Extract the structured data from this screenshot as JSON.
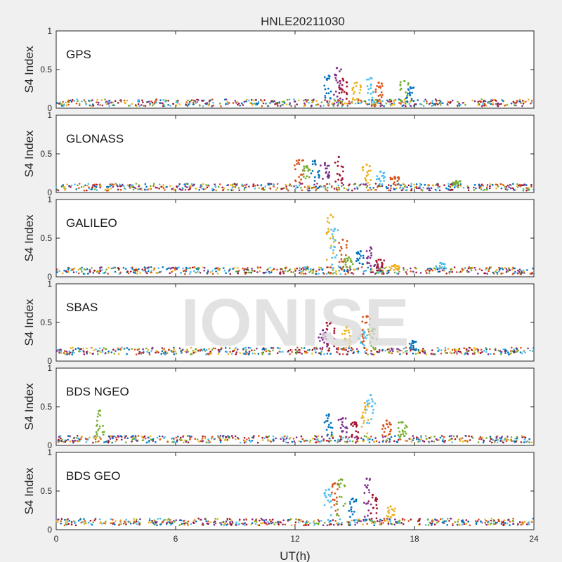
{
  "figure": {
    "title": "HNLE20211030",
    "watermark": "IONISE"
  },
  "colors": {
    "background": "#f0f0f0",
    "axes": "#262626",
    "series": [
      "#0072bd",
      "#d95319",
      "#edb120",
      "#7e2f8e",
      "#77ac30",
      "#4dbeee",
      "#a2142f"
    ]
  },
  "chart_data": [
    {
      "type": "scatter",
      "panel": "GPS",
      "xlabel": "",
      "ylabel": "S4 Index",
      "xlim": [
        0,
        24
      ],
      "ylim": [
        0,
        1
      ],
      "xticks": [
        0,
        6,
        12,
        18,
        24
      ],
      "yticks": [
        0,
        0.5,
        1
      ],
      "xtick_labels_shown": false,
      "grid": false,
      "background_level": 0.07,
      "events": [
        {
          "x": 13.7,
          "y": 0.42
        },
        {
          "x": 14.1,
          "y": 0.52
        },
        {
          "x": 14.4,
          "y": 0.38
        },
        {
          "x": 15.1,
          "y": 0.33
        },
        {
          "x": 15.8,
          "y": 0.39
        },
        {
          "x": 16.2,
          "y": 0.33
        },
        {
          "x": 17.5,
          "y": 0.35
        },
        {
          "x": 17.8,
          "y": 0.27
        }
      ]
    },
    {
      "type": "scatter",
      "panel": "GLONASS",
      "xlabel": "",
      "ylabel": "S4 Index",
      "xlim": [
        0,
        24
      ],
      "ylim": [
        0,
        1
      ],
      "xticks": [
        0,
        6,
        12,
        18,
        24
      ],
      "yticks": [
        0,
        0.5,
        1
      ],
      "xtick_labels_shown": false,
      "grid": false,
      "background_level": 0.07,
      "events": [
        {
          "x": 12.2,
          "y": 0.42
        },
        {
          "x": 12.6,
          "y": 0.34
        },
        {
          "x": 13.0,
          "y": 0.41
        },
        {
          "x": 13.5,
          "y": 0.38
        },
        {
          "x": 14.2,
          "y": 0.46
        },
        {
          "x": 15.6,
          "y": 0.36
        },
        {
          "x": 16.3,
          "y": 0.27
        },
        {
          "x": 17.0,
          "y": 0.2
        },
        {
          "x": 20.1,
          "y": 0.15
        }
      ]
    },
    {
      "type": "scatter",
      "panel": "GALILEO",
      "xlabel": "",
      "ylabel": "S4 Index",
      "xlim": [
        0,
        24
      ],
      "ylim": [
        0,
        1
      ],
      "xticks": [
        0,
        6,
        12,
        18,
        24
      ],
      "yticks": [
        0,
        0.5,
        1
      ],
      "xtick_labels_shown": false,
      "grid": false,
      "background_level": 0.08,
      "events": [
        {
          "x": 13.8,
          "y": 0.8
        },
        {
          "x": 14.0,
          "y": 0.62
        },
        {
          "x": 14.4,
          "y": 0.48
        },
        {
          "x": 14.7,
          "y": 0.25
        },
        {
          "x": 15.3,
          "y": 0.33
        },
        {
          "x": 15.8,
          "y": 0.38
        },
        {
          "x": 16.3,
          "y": 0.22
        },
        {
          "x": 17.0,
          "y": 0.15
        },
        {
          "x": 19.3,
          "y": 0.18
        }
      ]
    },
    {
      "type": "scatter",
      "panel": "SBAS",
      "xlabel": "",
      "ylabel": "S4 Index",
      "xlim": [
        0,
        24
      ],
      "ylim": [
        0,
        1
      ],
      "xticks": [
        0,
        6,
        12,
        18,
        24
      ],
      "yticks": [
        0,
        0.5,
        1
      ],
      "xtick_labels_shown": false,
      "grid": false,
      "background_level": 0.13,
      "events": [
        {
          "x": 13.4,
          "y": 0.4
        },
        {
          "x": 13.8,
          "y": 0.5
        },
        {
          "x": 14.6,
          "y": 0.45
        },
        {
          "x": 15.4,
          "y": 0.4
        },
        {
          "x": 15.6,
          "y": 0.58
        },
        {
          "x": 15.9,
          "y": 0.42
        },
        {
          "x": 17.9,
          "y": 0.26
        }
      ]
    },
    {
      "type": "scatter",
      "panel": "BDS NGEO",
      "xlabel": "",
      "ylabel": "S4 Index",
      "xlim": [
        0,
        24
      ],
      "ylim": [
        0,
        1
      ],
      "xticks": [
        0,
        6,
        12,
        18,
        24
      ],
      "yticks": [
        0,
        0.5,
        1
      ],
      "xtick_labels_shown": false,
      "grid": false,
      "background_level": 0.08,
      "events": [
        {
          "x": 2.2,
          "y": 0.45
        },
        {
          "x": 13.7,
          "y": 0.4
        },
        {
          "x": 14.4,
          "y": 0.35
        },
        {
          "x": 15.0,
          "y": 0.3
        },
        {
          "x": 15.5,
          "y": 0.55
        },
        {
          "x": 15.8,
          "y": 0.65
        },
        {
          "x": 16.6,
          "y": 0.32
        },
        {
          "x": 17.4,
          "y": 0.3
        }
      ]
    },
    {
      "type": "scatter",
      "panel": "BDS GEO",
      "xlabel": "UT(h)",
      "ylabel": "S4 Index",
      "xlim": [
        0,
        24
      ],
      "ylim": [
        0,
        1
      ],
      "xticks": [
        0,
        6,
        12,
        18,
        24
      ],
      "yticks": [
        0,
        0.5,
        1
      ],
      "xtick_labels_shown": true,
      "grid": false,
      "background_level": 0.1,
      "events": [
        {
          "x": 13.7,
          "y": 0.52
        },
        {
          "x": 14.0,
          "y": 0.6
        },
        {
          "x": 14.3,
          "y": 0.65
        },
        {
          "x": 14.9,
          "y": 0.4
        },
        {
          "x": 15.6,
          "y": 0.66
        },
        {
          "x": 15.9,
          "y": 0.45
        },
        {
          "x": 16.8,
          "y": 0.3
        }
      ]
    }
  ]
}
